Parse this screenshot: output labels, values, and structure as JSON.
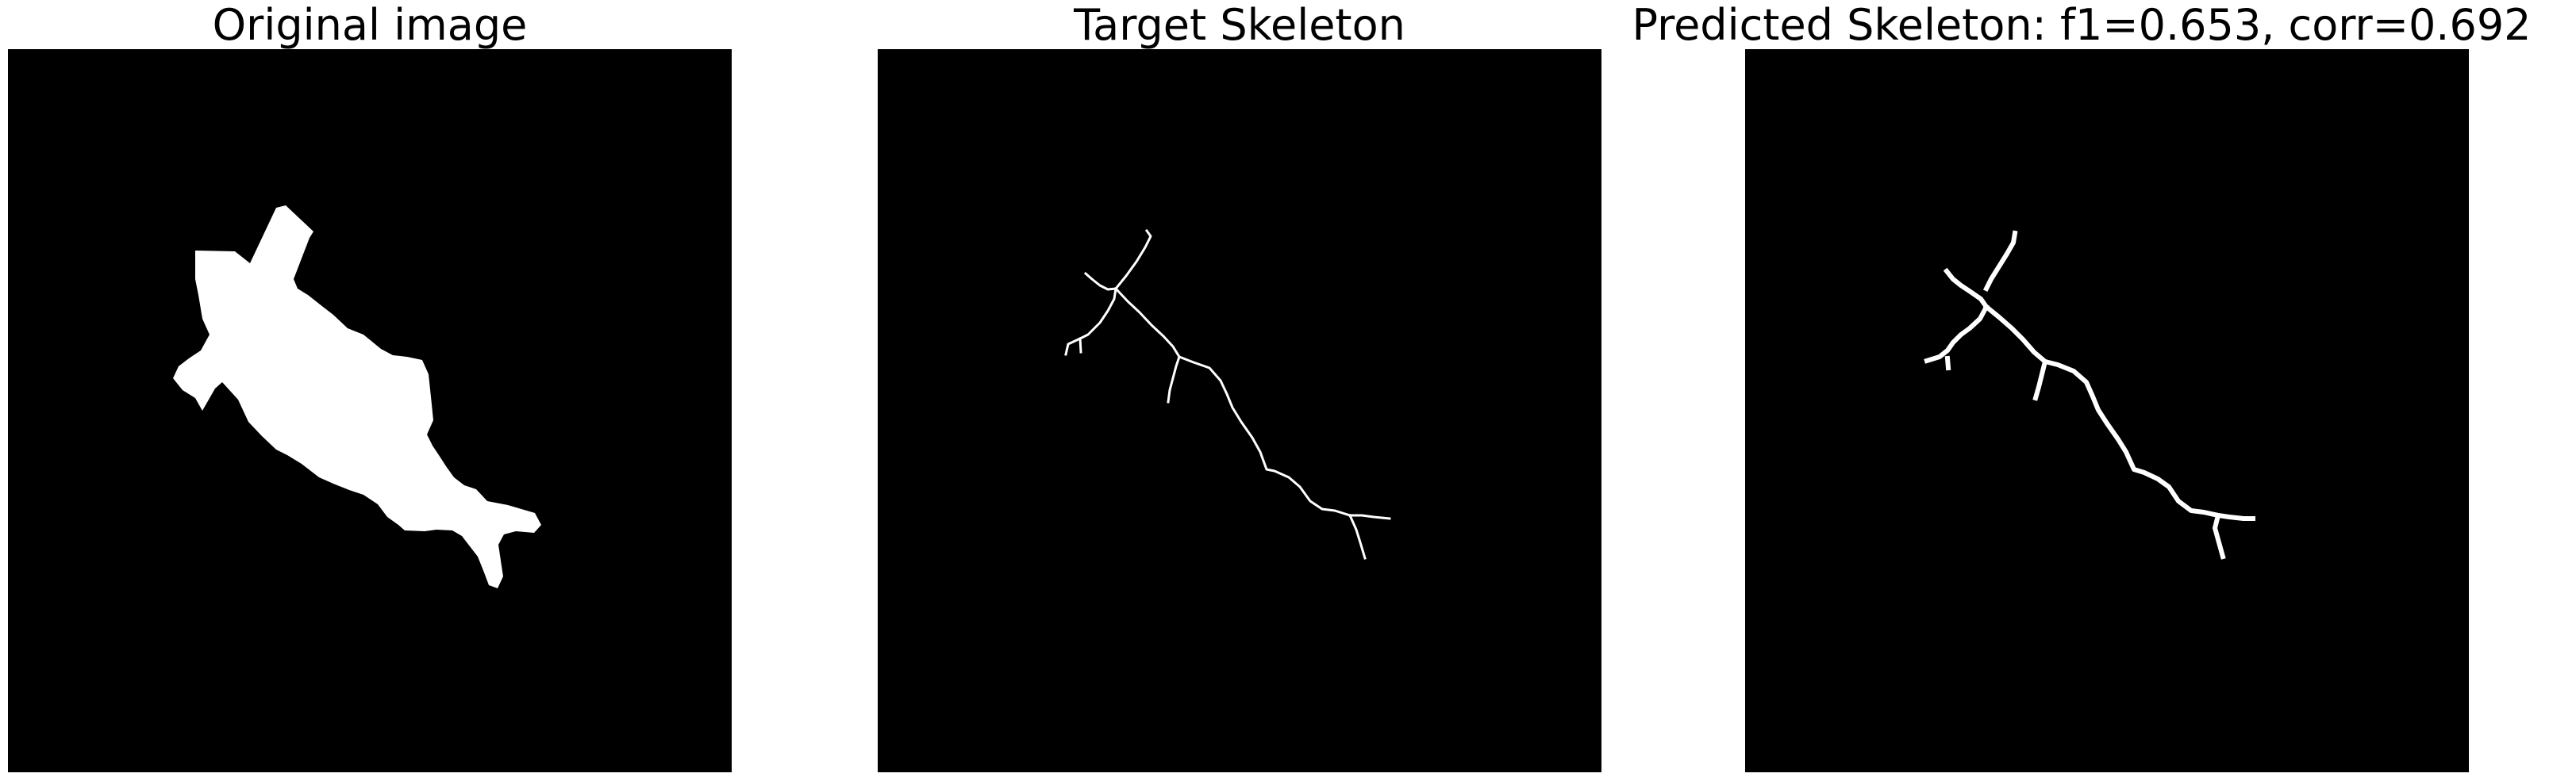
{
  "panels": {
    "original": {
      "title": "Original image"
    },
    "target": {
      "title": "Target Skeleton"
    },
    "predicted": {
      "title": "Predicted Skeleton: f1=0.653, corr=0.692"
    }
  },
  "colors": {
    "background": "#000000",
    "foreground": "#ffffff"
  }
}
